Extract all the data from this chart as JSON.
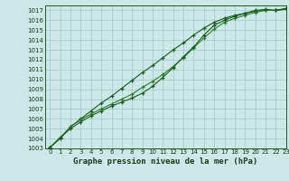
{
  "background_color": "#cce8e8",
  "grid_color": "#a0c8c8",
  "line_color_dark": "#1a5c1a",
  "line_color_mid": "#2e7d32",
  "title": "Graphe pression niveau de la mer (hPa)",
  "xlim": [
    -0.5,
    23
  ],
  "ylim": [
    1003,
    1017.5
  ],
  "yticks": [
    1003,
    1004,
    1005,
    1006,
    1007,
    1008,
    1009,
    1010,
    1011,
    1012,
    1013,
    1014,
    1015,
    1016,
    1017
  ],
  "xticks": [
    0,
    1,
    2,
    3,
    4,
    5,
    6,
    7,
    8,
    9,
    10,
    11,
    12,
    13,
    14,
    15,
    16,
    17,
    18,
    19,
    20,
    21,
    22,
    23
  ],
  "series1_x": [
    0,
    1,
    2,
    3,
    4,
    5,
    6,
    7,
    8,
    9,
    10,
    11,
    12,
    13,
    14,
    15,
    16,
    17,
    18,
    19,
    20,
    21,
    22,
    23
  ],
  "series1_y": [
    1003.1,
    1004.0,
    1005.2,
    1006.0,
    1006.8,
    1007.6,
    1008.3,
    1009.1,
    1009.9,
    1010.7,
    1011.4,
    1012.2,
    1013.0,
    1013.7,
    1014.5,
    1015.2,
    1015.8,
    1016.2,
    1016.5,
    1016.7,
    1016.9,
    1017.0,
    1017.0,
    1017.1
  ],
  "series2_x": [
    0,
    1,
    2,
    3,
    4,
    5,
    6,
    7,
    8,
    9,
    10,
    11,
    12,
    13,
    14,
    15,
    16,
    17,
    18,
    19,
    20,
    21,
    22,
    23
  ],
  "series2_y": [
    1003.1,
    1004.1,
    1005.2,
    1005.9,
    1006.5,
    1007.0,
    1007.5,
    1008.0,
    1008.5,
    1009.2,
    1009.8,
    1010.5,
    1011.3,
    1012.2,
    1013.2,
    1014.2,
    1015.1,
    1015.8,
    1016.2,
    1016.5,
    1016.8,
    1017.0,
    1017.0,
    1017.2
  ],
  "series3_x": [
    0,
    1,
    2,
    3,
    4,
    5,
    6,
    7,
    8,
    9,
    10,
    11,
    12,
    13,
    14,
    15,
    16,
    17,
    18,
    19,
    20,
    21,
    22,
    23
  ],
  "series3_y": [
    1003.1,
    1004.1,
    1005.0,
    1005.7,
    1006.3,
    1006.8,
    1007.3,
    1007.7,
    1008.1,
    1008.6,
    1009.3,
    1010.2,
    1011.2,
    1012.3,
    1013.3,
    1014.5,
    1015.5,
    1016.0,
    1016.4,
    1016.7,
    1017.0,
    1017.1,
    1017.0,
    1017.2
  ],
  "title_fontsize": 6.5,
  "tick_fontsize": 5.0
}
